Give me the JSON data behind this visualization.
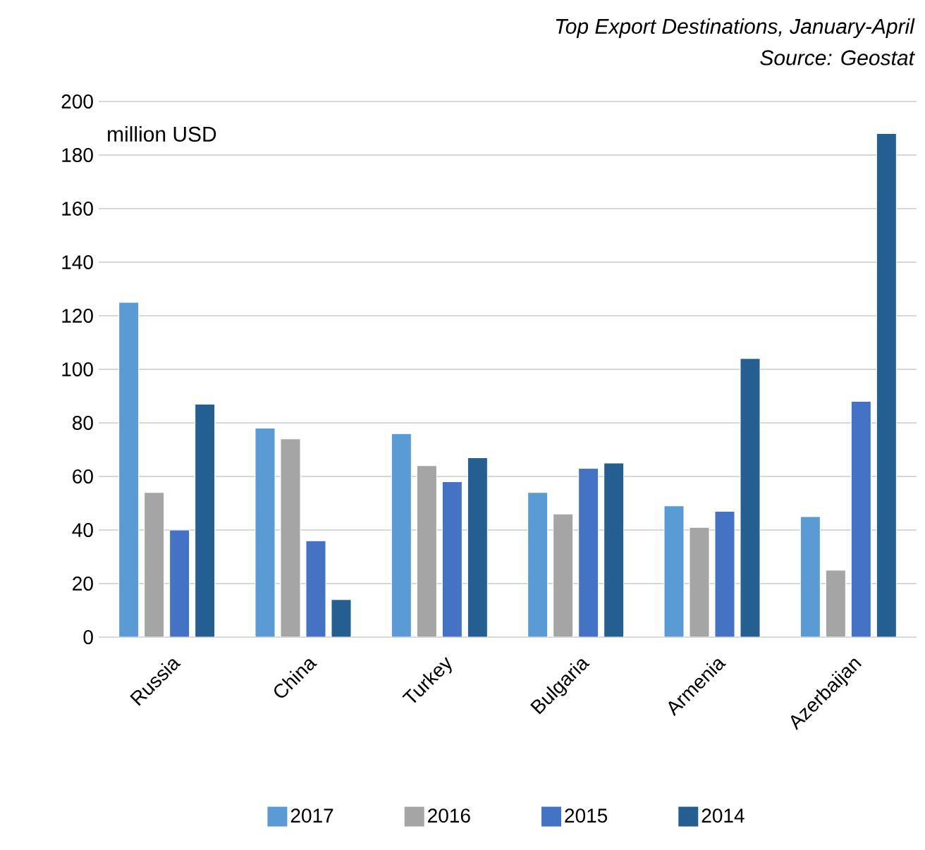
{
  "chart_data": {
    "type": "bar",
    "title": "Top Export Destinations, January-April",
    "annotations": [
      "Source: Geostat"
    ],
    "ylabel": "million USD",
    "categories": [
      "Russia",
      "China",
      "Turkey",
      "Bulgaria",
      "Armenia",
      "Azerbaijan"
    ],
    "series": [
      {
        "name": "2017",
        "color": "#5b9bd5",
        "values": [
          125,
          78,
          76,
          54,
          49,
          45
        ]
      },
      {
        "name": "2016",
        "color": "#a5a5a5",
        "values": [
          54,
          74,
          64,
          46,
          41,
          25
        ]
      },
      {
        "name": "2015",
        "color": "#4472c4",
        "values": [
          40,
          36,
          58,
          63,
          47,
          88
        ]
      },
      {
        "name": "2014",
        "color": "#255e91",
        "values": [
          87,
          14,
          67,
          65,
          104,
          188
        ]
      }
    ],
    "ylim": [
      0,
      200
    ],
    "yticks": [
      0,
      20,
      40,
      60,
      80,
      100,
      120,
      140,
      160,
      180,
      200
    ],
    "grid": "y",
    "legend": "bottom"
  }
}
